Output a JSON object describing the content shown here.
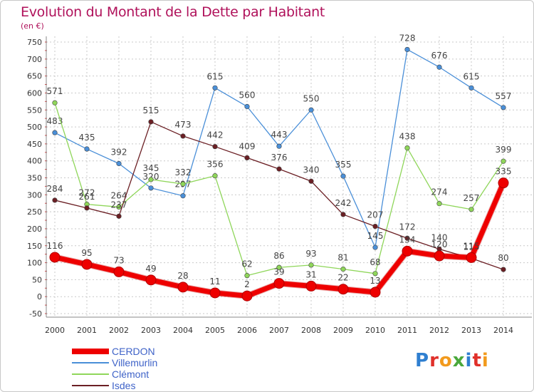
{
  "title": "Evolution du Montant de la Dette par Habitant",
  "unit": "(en €)",
  "logo_text": "Proxiti",
  "colors": {
    "title": "#b0125b",
    "legend_text": "#3f63c8",
    "grid": "#c9c9c9",
    "axis_text": "#333333"
  },
  "chart_data": {
    "type": "line",
    "title": "Evolution du Montant de la Dette par Habitant",
    "ylabel": "(en €)",
    "xlabel": "",
    "x": [
      "2000",
      "2001",
      "2002",
      "2003",
      "2004",
      "2005",
      "2006",
      "2007",
      "2008",
      "2009",
      "2010",
      "2011",
      "2012",
      "2013",
      "2014"
    ],
    "ylim": [
      -50,
      750
    ],
    "yticks": [
      -50,
      0,
      50,
      100,
      150,
      200,
      250,
      300,
      350,
      400,
      450,
      500,
      550,
      600,
      650,
      700,
      750
    ],
    "grid": true,
    "legend_position": "bottom-left",
    "series": [
      {
        "name": "CERDON",
        "color": "#ee0000",
        "values": [
          116,
          95,
          73,
          49,
          28,
          11,
          2,
          39,
          31,
          22,
          13,
          134,
          120,
          115,
          335
        ]
      },
      {
        "name": "Villemurlin",
        "color": "#4a8fd8",
        "values": [
          483,
          435,
          392,
          320,
          297,
          615,
          560,
          443,
          550,
          355,
          145,
          728,
          676,
          615,
          557
        ]
      },
      {
        "name": "Clémont",
        "color": "#8fd65a",
        "values": [
          571,
          272,
          264,
          345,
          332,
          356,
          62,
          86,
          93,
          81,
          68,
          438,
          274,
          257,
          399
        ]
      },
      {
        "name": "Isdes",
        "color": "#6b1f24",
        "values": [
          284,
          261,
          237,
          515,
          473,
          442,
          409,
          376,
          340,
          242,
          207,
          172,
          140,
          113,
          80
        ]
      }
    ]
  }
}
